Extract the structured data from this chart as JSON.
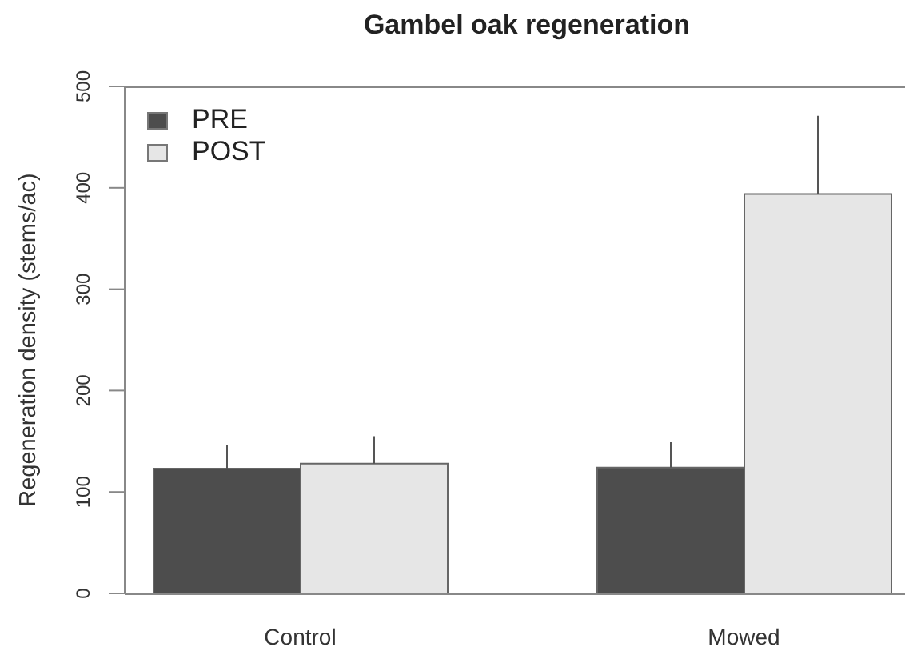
{
  "chart_data": {
    "type": "bar",
    "title": "Gambel oak regeneration",
    "ylabel": "Regeneration density (stems/ac)",
    "categories": [
      "Control",
      "Mowed"
    ],
    "series": [
      {
        "name": "PRE",
        "color": "#4d4d4d",
        "values": [
          123,
          124
        ],
        "errors": [
          [
            123,
            146
          ],
          [
            124,
            149
          ]
        ]
      },
      {
        "name": "POST",
        "color": "#e6e6e6",
        "values": [
          128,
          394
        ],
        "errors": [
          [
            128,
            155
          ],
          [
            394,
            471
          ]
        ]
      }
    ],
    "ylim": [
      0,
      500
    ],
    "yticks": [
      0,
      100,
      200,
      300,
      400,
      500
    ],
    "legend": "top left"
  }
}
